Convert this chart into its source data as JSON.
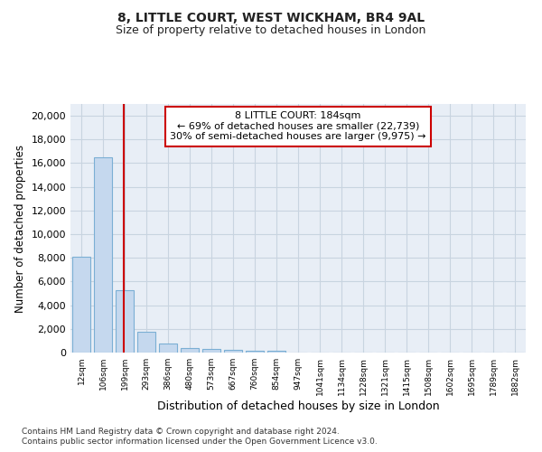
{
  "title1": "8, LITTLE COURT, WEST WICKHAM, BR4 9AL",
  "title2": "Size of property relative to detached houses in London",
  "xlabel": "Distribution of detached houses by size in London",
  "ylabel": "Number of detached properties",
  "categories": [
    "12sqm",
    "106sqm",
    "199sqm",
    "293sqm",
    "386sqm",
    "480sqm",
    "573sqm",
    "667sqm",
    "760sqm",
    "854sqm",
    "947sqm",
    "1041sqm",
    "1134sqm",
    "1228sqm",
    "1321sqm",
    "1415sqm",
    "1508sqm",
    "1602sqm",
    "1695sqm",
    "1789sqm",
    "1882sqm"
  ],
  "bar_heights": [
    8100,
    16500,
    5300,
    1750,
    750,
    380,
    270,
    200,
    170,
    120,
    0,
    0,
    0,
    0,
    0,
    0,
    0,
    0,
    0,
    0,
    0
  ],
  "bar_color": "#c5d8ee",
  "bar_edge_color": "#7bafd4",
  "vline_x": 1.95,
  "annotation_text": "8 LITTLE COURT: 184sqm\n← 69% of detached houses are smaller (22,739)\n30% of semi-detached houses are larger (9,975) →",
  "annotation_box_color": "#ffffff",
  "annotation_box_edgecolor": "#cc0000",
  "vline_color": "#cc0000",
  "ylim": [
    0,
    21000
  ],
  "yticks": [
    0,
    2000,
    4000,
    6000,
    8000,
    10000,
    12000,
    14000,
    16000,
    18000,
    20000
  ],
  "grid_color": "#c8d4e0",
  "bg_color": "#e8eef6",
  "footer1": "Contains HM Land Registry data © Crown copyright and database right 2024.",
  "footer2": "Contains public sector information licensed under the Open Government Licence v3.0."
}
